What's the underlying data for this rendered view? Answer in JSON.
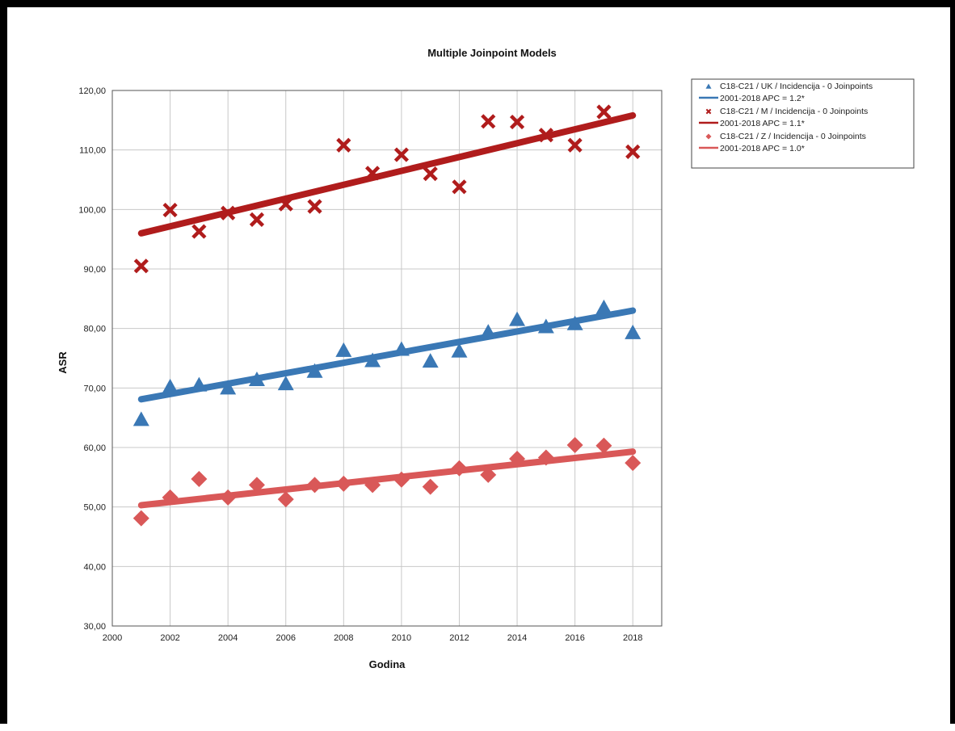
{
  "chart_data": {
    "type": "scatter",
    "title": "Multiple Joinpoint Models",
    "xlabel": "Godina",
    "ylabel": "ASR",
    "xlim": [
      2000,
      2019
    ],
    "ylim": [
      30,
      120
    ],
    "x_ticks": [
      "2000",
      "2002",
      "2004",
      "2006",
      "2008",
      "2010",
      "2012",
      "2014",
      "2016",
      "2018"
    ],
    "y_ticks": [
      "30,00",
      "40,00",
      "50,00",
      "60,00",
      "70,00",
      "80,00",
      "90,00",
      "100,00",
      "110,00",
      "120,00"
    ],
    "grid": true,
    "legend_position": "top-right outside",
    "x": [
      2001,
      2002,
      2003,
      2004,
      2005,
      2006,
      2007,
      2008,
      2009,
      2010,
      2011,
      2012,
      2013,
      2014,
      2015,
      2016,
      2017,
      2018
    ],
    "series": [
      {
        "name": "C18-C21 / UK / Incidencija - 0 Joinpoints",
        "marker": "triangle",
        "color": "#3a78b5",
        "values": [
          64.7,
          70.2,
          70.5,
          70.0,
          71.4,
          70.7,
          72.8,
          76.3,
          74.6,
          76.5,
          74.5,
          76.2,
          79.4,
          81.5,
          80.3,
          80.8,
          83.5,
          79.3
        ],
        "fit": {
          "label": "2001-2018 APC  = 1.2*",
          "from": [
            2001,
            68.1
          ],
          "to": [
            2018,
            83.0
          ]
        }
      },
      {
        "name": "C18-C21 / M / Incidencija - 0 Joinpoints",
        "marker": "x",
        "color": "#b01c1c",
        "values": [
          90.5,
          99.9,
          96.3,
          99.4,
          98.3,
          100.9,
          100.5,
          110.8,
          106.1,
          109.2,
          106.0,
          103.8,
          114.8,
          114.7,
          112.5,
          110.8,
          116.4,
          109.7
        ],
        "fit": {
          "label": "2001-2018 APC  = 1.1*",
          "from": [
            2001,
            96.0
          ],
          "to": [
            2018,
            115.8
          ]
        }
      },
      {
        "name": "C18-C21 / Z / Incidencija - 0 Joinpoints",
        "marker": "diamond",
        "color": "#d95858",
        "values": [
          48.1,
          51.6,
          54.7,
          51.6,
          53.7,
          51.3,
          53.7,
          53.9,
          53.7,
          54.6,
          53.4,
          56.5,
          55.4,
          58.1,
          58.3,
          60.4,
          60.3,
          57.4
        ],
        "fit": {
          "label": "2001-2018 APC  = 1.0*",
          "from": [
            2001,
            50.3
          ],
          "to": [
            2018,
            59.3
          ]
        }
      }
    ]
  }
}
